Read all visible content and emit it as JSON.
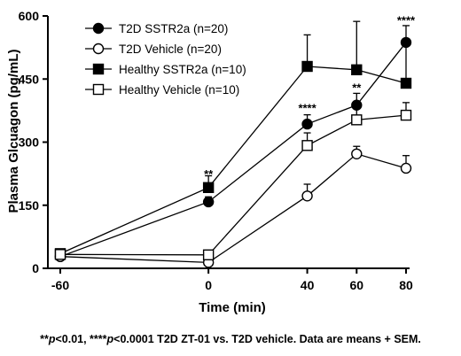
{
  "chart_data": {
    "type": "line",
    "title": "",
    "xlabel": "Time (min)",
    "ylabel": "Plasma Glcuagon (pg/mL)",
    "x": [
      -60,
      0,
      40,
      60,
      80
    ],
    "xticks": [
      "-60",
      "0",
      "40",
      "60",
      "80"
    ],
    "ylim": [
      0,
      600
    ],
    "yticks": [
      "0",
      "150",
      "300",
      "450",
      "600"
    ],
    "grid": false,
    "legend_position": "top-left",
    "series": [
      {
        "name": "T2D SSTR2a (n=20)",
        "marker": "filled-circle",
        "values": [
          28,
          158,
          343,
          388,
          537
        ],
        "err": [
          0,
          12,
          22,
          28,
          40
        ]
      },
      {
        "name": "T2D Vehicle (n=20)",
        "marker": "open-circle",
        "values": [
          28,
          14,
          172,
          272,
          238
        ],
        "err": [
          0,
          0,
          28,
          18,
          30
        ]
      },
      {
        "name": "Healthy SSTR2a (n=10)",
        "marker": "filled-square",
        "values": [
          35,
          192,
          480,
          472,
          440
        ],
        "err": [
          0,
          28,
          75,
          115,
          100
        ]
      },
      {
        "name": "Healthy Vehicle (n=10)",
        "marker": "open-square",
        "values": [
          33,
          32,
          292,
          353,
          364
        ],
        "err": [
          0,
          0,
          30,
          32,
          30
        ]
      }
    ],
    "annotations": [
      {
        "x": 0,
        "y": 215,
        "text": "**"
      },
      {
        "x": 40,
        "y": 372,
        "text": "****"
      },
      {
        "x": 60,
        "y": 420,
        "text": "**"
      },
      {
        "x": 80,
        "y": 580,
        "text": "****"
      }
    ]
  },
  "footnote": {
    "part1": "**",
    "p1": "p",
    "part2": "<0.01, ****",
    "p2": "p",
    "part3": "<0.0001 T2D ZT-01 vs. T2D vehicle. Data are means + SEM."
  }
}
